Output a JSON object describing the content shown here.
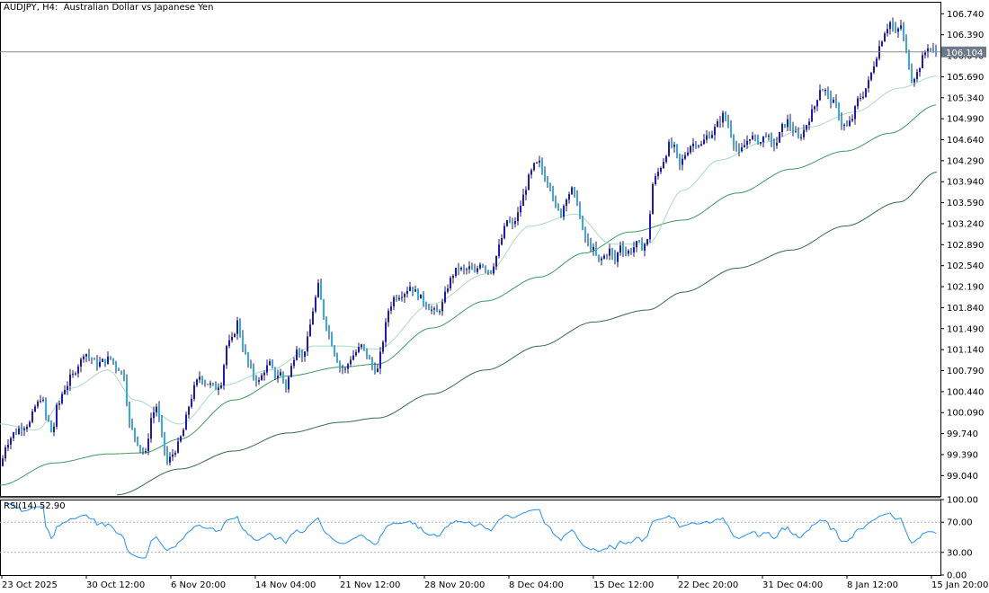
{
  "header": {
    "symbol_label": "AUDJPY, H4:",
    "description": "Australian Dollar vs Japanese Yen"
  },
  "rsi_label": {
    "name": "RSI(14)",
    "value": "52.90"
  },
  "chart_data": {
    "type": "candlestick",
    "symbol": "AUDJPY",
    "timeframe": "H4",
    "current_price": 106.104,
    "price_axis": {
      "ylim": [
        98.7,
        106.94
      ],
      "ticks": [
        106.74,
        106.39,
        106.04,
        105.69,
        105.34,
        104.99,
        104.64,
        104.29,
        103.94,
        103.59,
        103.24,
        102.89,
        102.54,
        102.19,
        101.84,
        101.49,
        101.14,
        100.79,
        100.44,
        100.09,
        99.74,
        99.39,
        99.04
      ]
    },
    "tick_labels": [
      "106.740",
      "106.390",
      "106.040",
      "105.690",
      "105.340",
      "104.990",
      "104.640",
      "104.290",
      "103.940",
      "103.590",
      "103.240",
      "102.890",
      "102.540",
      "102.190",
      "101.840",
      "101.490",
      "101.140",
      "100.790",
      "100.440",
      "100.090",
      "99.740",
      "99.390",
      "99.040"
    ],
    "current_price_label": "106.104",
    "x_labels": [
      "23 Oct 2025",
      "30 Oct 12:00",
      "6 Nov 20:00",
      "14 Nov 04:00",
      "21 Nov 12:00",
      "28 Nov 20:00",
      "8 Dec 04:00",
      "15 Dec 12:00",
      "22 Dec 20:00",
      "31 Dec 04:00",
      "8 Jan 12:00",
      "15 Jan 20:00"
    ],
    "path_anchors": [
      [
        0,
        99.2
      ],
      [
        8,
        99.6
      ],
      [
        16,
        99.75
      ],
      [
        24,
        99.85
      ],
      [
        32,
        99.9
      ],
      [
        40,
        100.2
      ],
      [
        46,
        100.35
      ],
      [
        52,
        100.0
      ],
      [
        58,
        99.75
      ],
      [
        64,
        100.2
      ],
      [
        72,
        100.5
      ],
      [
        80,
        100.7
      ],
      [
        88,
        100.9
      ],
      [
        94,
        101.1
      ],
      [
        100,
        101.0
      ],
      [
        108,
        100.9
      ],
      [
        116,
        100.95
      ],
      [
        122,
        101.0
      ],
      [
        130,
        100.85
      ],
      [
        138,
        100.7
      ],
      [
        144,
        99.9
      ],
      [
        150,
        99.7
      ],
      [
        156,
        99.5
      ],
      [
        162,
        99.4
      ],
      [
        168,
        100.0
      ],
      [
        174,
        100.2
      ],
      [
        180,
        99.7
      ],
      [
        186,
        99.25
      ],
      [
        192,
        99.4
      ],
      [
        198,
        99.55
      ],
      [
        204,
        99.8
      ],
      [
        210,
        100.2
      ],
      [
        216,
        100.5
      ],
      [
        222,
        100.7
      ],
      [
        228,
        100.6
      ],
      [
        234,
        100.55
      ],
      [
        240,
        100.5
      ],
      [
        246,
        100.6
      ],
      [
        252,
        101.2
      ],
      [
        258,
        101.3
      ],
      [
        264,
        101.6
      ],
      [
        270,
        101.2
      ],
      [
        276,
        100.9
      ],
      [
        282,
        100.7
      ],
      [
        288,
        100.6
      ],
      [
        294,
        100.8
      ],
      [
        300,
        100.9
      ],
      [
        306,
        100.7
      ],
      [
        312,
        100.75
      ],
      [
        318,
        100.5
      ],
      [
        324,
        100.85
      ],
      [
        330,
        101.2
      ],
      [
        336,
        101.0
      ],
      [
        342,
        101.3
      ],
      [
        348,
        101.8
      ],
      [
        354,
        102.2
      ],
      [
        360,
        101.7
      ],
      [
        366,
        101.4
      ],
      [
        372,
        101.1
      ],
      [
        378,
        100.85
      ],
      [
        384,
        100.8
      ],
      [
        390,
        101.0
      ],
      [
        396,
        101.1
      ],
      [
        402,
        101.2
      ],
      [
        408,
        101.05
      ],
      [
        414,
        100.85
      ],
      [
        420,
        100.8
      ],
      [
        426,
        101.3
      ],
      [
        432,
        101.8
      ],
      [
        438,
        102.0
      ],
      [
        444,
        102.05
      ],
      [
        450,
        102.1
      ],
      [
        456,
        102.2
      ],
      [
        462,
        102.1
      ],
      [
        468,
        102.0
      ],
      [
        474,
        101.9
      ],
      [
        480,
        101.8
      ],
      [
        486,
        101.75
      ],
      [
        492,
        101.9
      ],
      [
        498,
        102.2
      ],
      [
        504,
        102.4
      ],
      [
        510,
        102.5
      ],
      [
        516,
        102.45
      ],
      [
        522,
        102.5
      ],
      [
        528,
        102.4
      ],
      [
        534,
        102.6
      ],
      [
        540,
        102.5
      ],
      [
        546,
        102.45
      ],
      [
        552,
        102.7
      ],
      [
        558,
        103.0
      ],
      [
        564,
        103.3
      ],
      [
        570,
        103.2
      ],
      [
        576,
        103.4
      ],
      [
        582,
        103.7
      ],
      [
        588,
        104.0
      ],
      [
        594,
        104.2
      ],
      [
        600,
        104.25
      ],
      [
        606,
        104.0
      ],
      [
        612,
        103.9
      ],
      [
        618,
        103.5
      ],
      [
        624,
        103.4
      ],
      [
        630,
        103.7
      ],
      [
        636,
        103.8
      ],
      [
        642,
        103.6
      ],
      [
        648,
        103.1
      ],
      [
        654,
        102.9
      ],
      [
        660,
        102.8
      ],
      [
        666,
        102.6
      ],
      [
        672,
        102.7
      ],
      [
        678,
        102.8
      ],
      [
        684,
        102.6
      ],
      [
        690,
        102.9
      ],
      [
        696,
        102.75
      ],
      [
        702,
        102.8
      ],
      [
        708,
        102.9
      ],
      [
        714,
        102.85
      ],
      [
        720,
        102.95
      ],
      [
        726,
        103.9
      ],
      [
        732,
        104.1
      ],
      [
        738,
        104.3
      ],
      [
        744,
        104.55
      ],
      [
        750,
        104.5
      ],
      [
        756,
        104.2
      ],
      [
        762,
        104.4
      ],
      [
        768,
        104.55
      ],
      [
        774,
        104.6
      ],
      [
        780,
        104.55
      ],
      [
        786,
        104.7
      ],
      [
        792,
        104.75
      ],
      [
        798,
        104.9
      ],
      [
        804,
        105.05
      ],
      [
        810,
        104.9
      ],
      [
        816,
        104.6
      ],
      [
        822,
        104.4
      ],
      [
        828,
        104.55
      ],
      [
        834,
        104.7
      ],
      [
        840,
        104.65
      ],
      [
        846,
        104.6
      ],
      [
        852,
        104.75
      ],
      [
        858,
        104.55
      ],
      [
        864,
        104.6
      ],
      [
        870,
        104.85
      ],
      [
        876,
        104.95
      ],
      [
        882,
        104.8
      ],
      [
        888,
        104.65
      ],
      [
        894,
        104.8
      ],
      [
        900,
        105.0
      ],
      [
        906,
        105.2
      ],
      [
        912,
        105.5
      ],
      [
        918,
        105.45
      ],
      [
        924,
        105.3
      ],
      [
        930,
        105.2
      ],
      [
        936,
        104.9
      ],
      [
        942,
        104.85
      ],
      [
        948,
        105.0
      ],
      [
        954,
        105.3
      ],
      [
        960,
        105.4
      ],
      [
        966,
        105.6
      ],
      [
        972,
        105.9
      ],
      [
        978,
        106.2
      ],
      [
        984,
        106.45
      ],
      [
        990,
        106.6
      ],
      [
        996,
        106.4
      ],
      [
        1002,
        106.55
      ],
      [
        1008,
        106.1
      ],
      [
        1014,
        105.65
      ],
      [
        1020,
        105.75
      ],
      [
        1026,
        106.0
      ],
      [
        1032,
        106.2
      ],
      [
        1038,
        106.12
      ],
      [
        1042,
        106.1
      ]
    ],
    "ma_fast_anchors": [
      [
        0,
        99.9
      ],
      [
        40,
        99.8
      ],
      [
        80,
        100.5
      ],
      [
        120,
        100.8
      ],
      [
        150,
        100.3
      ],
      [
        200,
        99.9
      ],
      [
        250,
        100.55
      ],
      [
        300,
        100.8
      ],
      [
        350,
        101.2
      ],
      [
        380,
        101.2
      ],
      [
        420,
        101.15
      ],
      [
        480,
        101.9
      ],
      [
        540,
        102.4
      ],
      [
        590,
        103.2
      ],
      [
        640,
        103.4
      ],
      [
        680,
        102.9
      ],
      [
        720,
        102.9
      ],
      [
        760,
        103.8
      ],
      [
        800,
        104.3
      ],
      [
        850,
        104.6
      ],
      [
        900,
        104.85
      ],
      [
        950,
        105.1
      ],
      [
        1000,
        105.5
      ],
      [
        1042,
        105.7
      ]
    ],
    "ma_mid_anchors": [
      [
        0,
        98.88
      ],
      [
        60,
        99.25
      ],
      [
        120,
        99.4
      ],
      [
        160,
        99.42
      ],
      [
        200,
        99.65
      ],
      [
        260,
        100.3
      ],
      [
        320,
        100.7
      ],
      [
        380,
        100.85
      ],
      [
        420,
        100.9
      ],
      [
        480,
        101.5
      ],
      [
        540,
        101.95
      ],
      [
        600,
        102.35
      ],
      [
        650,
        102.75
      ],
      [
        700,
        103.1
      ],
      [
        760,
        103.3
      ],
      [
        820,
        103.75
      ],
      [
        880,
        104.15
      ],
      [
        940,
        104.45
      ],
      [
        990,
        104.75
      ],
      [
        1042,
        105.22
      ]
    ],
    "ma_slow_anchors": [
      [
        130,
        98.72
      ],
      [
        200,
        99.15
      ],
      [
        260,
        99.45
      ],
      [
        320,
        99.75
      ],
      [
        380,
        99.93
      ],
      [
        420,
        100.0
      ],
      [
        480,
        100.4
      ],
      [
        540,
        100.8
      ],
      [
        600,
        101.2
      ],
      [
        660,
        101.6
      ],
      [
        720,
        101.8
      ],
      [
        760,
        102.1
      ],
      [
        820,
        102.5
      ],
      [
        880,
        102.8
      ],
      [
        940,
        103.2
      ],
      [
        1000,
        103.6
      ],
      [
        1042,
        104.1
      ]
    ],
    "ma_colors": {
      "fast": "#a6dcc0",
      "mid": "#3c9a5f",
      "slow": "#2f6f45"
    },
    "candle_colors": {
      "bull": "#1c17cc",
      "bear": "#2ab0e4",
      "wick": "#1a1a6e"
    },
    "rsi": {
      "period": 14,
      "value": 52.9,
      "ylim": [
        0,
        100
      ],
      "levels": [
        30,
        70
      ],
      "ticks": [
        100,
        70,
        30,
        0
      ],
      "tick_labels": [
        "100.00",
        "70.00",
        "30.00",
        "0.00"
      ],
      "color": "#1e90ff"
    }
  }
}
